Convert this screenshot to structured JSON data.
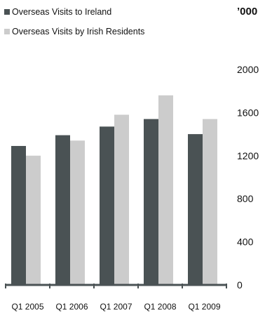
{
  "chart_data": {
    "type": "bar",
    "unit_label": "’000",
    "categories": [
      "Q1 2005",
      "Q1 2006",
      "Q1 2007",
      "Q1 2008",
      "Q1 2009"
    ],
    "series": [
      {
        "name": "Overseas Visits to Ireland",
        "color": "#4a5254",
        "values": [
          1290,
          1390,
          1470,
          1540,
          1400
        ]
      },
      {
        "name": "Overseas Visits by Irish Residents",
        "color": "#cccccc",
        "values": [
          1200,
          1340,
          1580,
          1760,
          1540
        ]
      }
    ],
    "yticks": [
      0,
      400,
      800,
      1200,
      1600,
      2000
    ],
    "ylim": [
      0,
      2000
    ],
    "y_axis_position": "right",
    "legend_position": "top-left",
    "grid": false
  }
}
